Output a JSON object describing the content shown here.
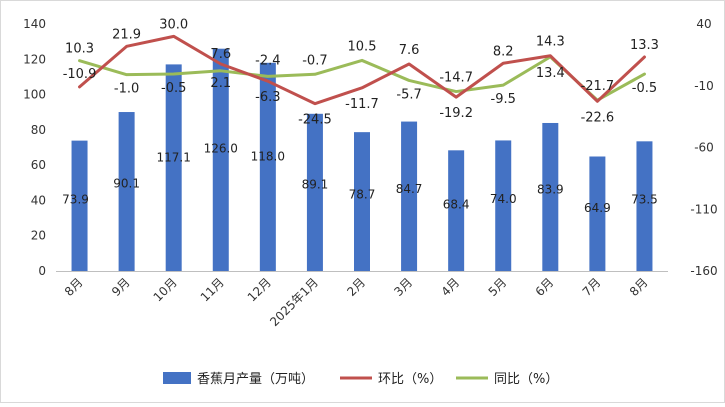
{
  "chart_data": {
    "type": "bar",
    "categories": [
      "8月",
      "9月",
      "10月",
      "11月",
      "12月",
      "2025年1月",
      "2月",
      "3月",
      "4月",
      "5月",
      "6月",
      "7月",
      "8月"
    ],
    "bars": {
      "name": "香蕉月产量（万吨）",
      "values": [
        73.9,
        90.1,
        117.1,
        126.0,
        118.0,
        89.1,
        78.7,
        84.7,
        68.4,
        74.0,
        83.9,
        64.9,
        73.5
      ],
      "labels": [
        "73.9",
        "90.1",
        "117.1",
        "126.0",
        "118.0",
        "89.1",
        "78.7",
        "84.7",
        "68.4",
        "74.0",
        "83.9",
        "64.9",
        "73.5"
      ],
      "color": "#4472C4"
    },
    "mom": {
      "name": "环比（%）",
      "values": [
        -10.9,
        21.9,
        30.0,
        7.6,
        -6.3,
        -24.5,
        -11.7,
        7.6,
        -19.2,
        8.2,
        14.3,
        -22.6,
        13.3
      ],
      "labels": [
        "-10.9",
        "21.9",
        "30.0",
        "7.6",
        "-6.3",
        "-24.5",
        "-11.7",
        "7.6",
        "-19.2",
        "8.2",
        "14.3",
        "-22.6",
        "13.3"
      ],
      "color": "#C0504D"
    },
    "yoy": {
      "name": "同比（%）",
      "values": [
        10.3,
        -1.0,
        -0.5,
        2.1,
        -2.4,
        -0.7,
        10.5,
        -5.7,
        -14.7,
        -9.5,
        13.4,
        -21.7,
        -0.5
      ],
      "labels": [
        "10.3",
        "-1.0",
        "-0.5",
        "2.1",
        "-2.4",
        "-0.7",
        "10.5",
        "-5.7",
        "-14.7",
        "-9.5",
        "13.4",
        "-21.7",
        "-0.5"
      ],
      "color": "#9BBB59"
    },
    "left_axis": {
      "min": 0,
      "max": 140,
      "ticks": [
        "0",
        "20",
        "40",
        "60",
        "80",
        "100",
        "120",
        "140"
      ]
    },
    "right_axis": {
      "min": -160,
      "max": 40,
      "ticks": [
        "-160",
        "-110",
        "-60",
        "-10",
        "40"
      ]
    },
    "legend_position": "bottom"
  }
}
